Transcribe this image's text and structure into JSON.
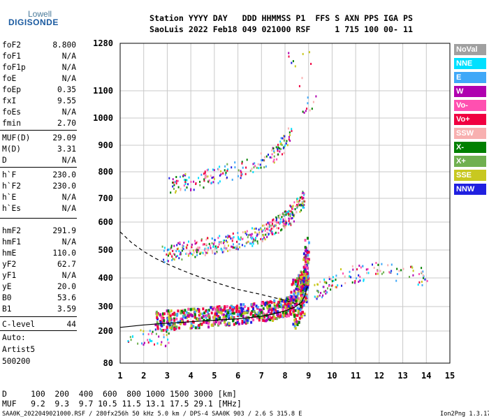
{
  "logo": {
    "top": "Lowell",
    "bottom": "DIGISONDE"
  },
  "header": {
    "line1": "Station YYYY DAY   DDD HHMMSS P1  FFS S AXN PPS IGA PS",
    "line2": "SaoLuis 2022 Feb18 049 021000 RSF     1 715 100 00- 11"
  },
  "params": [
    {
      "label": "foF2",
      "value": "8.800"
    },
    {
      "label": "foF1",
      "value": "N/A"
    },
    {
      "label": "foF1p",
      "value": "N/A"
    },
    {
      "label": "foE",
      "value": "N/A"
    },
    {
      "label": "foEp",
      "value": "0.35"
    },
    {
      "label": "fxI",
      "value": "9.55"
    },
    {
      "label": "foEs",
      "value": "N/A"
    },
    {
      "label": "fmin",
      "value": "2.70"
    },
    {
      "label": "MUF(D)",
      "value": "29.09"
    },
    {
      "label": "M(D)",
      "value": "3.31"
    },
    {
      "label": "D",
      "value": "N/A"
    },
    {
      "label": "h`F",
      "value": "230.0"
    },
    {
      "label": "h`F2",
      "value": "230.0"
    },
    {
      "label": "h`E",
      "value": "N/A"
    },
    {
      "label": "h`Es",
      "value": "N/A"
    },
    {
      "label": "hmF2",
      "value": "291.9"
    },
    {
      "label": "hmF1",
      "value": "N/A"
    },
    {
      "label": "hmE",
      "value": "110.0"
    },
    {
      "label": "yF2",
      "value": "62.7"
    },
    {
      "label": "yF1",
      "value": "N/A"
    },
    {
      "label": "yE",
      "value": "20.0"
    },
    {
      "label": "B0",
      "value": "53.6"
    },
    {
      "label": "B1",
      "value": "3.59"
    },
    {
      "label": "C-level",
      "value": "44"
    }
  ],
  "auto": {
    "line1": "Auto:",
    "line2": "Artist5",
    "line3": "500200"
  },
  "legend": [
    {
      "label": "NoVal",
      "color": "#a0a0a0"
    },
    {
      "label": "NNE",
      "color": "#00e0ff"
    },
    {
      "label": "E",
      "color": "#40a8f8"
    },
    {
      "label": "W",
      "color": "#b000b0"
    },
    {
      "label": "Vo-",
      "color": "#ff50b0"
    },
    {
      "label": "Vo+",
      "color": "#f00040"
    },
    {
      "label": "SSW",
      "color": "#f8b0b0"
    },
    {
      "label": "X-",
      "color": "#008000"
    },
    {
      "label": "X+",
      "color": "#70b050"
    },
    {
      "label": "SSE",
      "color": "#c8c820"
    },
    {
      "label": "NNW",
      "color": "#2020e0"
    }
  ],
  "bottom": {
    "d_line": "D     100  200  400  600  800 1000 1500 3000 [km]",
    "muf_line": "MUF   9.2  9.3  9.7 10.5 11.5 13.1 17.5 29.1 [MHz]"
  },
  "footer": {
    "left": "SAA0K_2022049021000.RSF / 280fx256h 50 kHz 5.0 km / DPS-4 SAA0K 903 / 2.6 S 315.8 E",
    "right": "Ion2Png 1.3.17"
  },
  "chart_data": {
    "type": "scatter",
    "xlim": [
      1,
      15
    ],
    "x_ticks": [
      1,
      2,
      3,
      4,
      5,
      6,
      7,
      8,
      9,
      10,
      11,
      12,
      13,
      14,
      15
    ],
    "y_ticks": [
      80,
      200,
      300,
      400,
      500,
      600,
      700,
      800,
      900,
      1000,
      1100,
      1280
    ],
    "y_ticks_scale": "virtual height in km, irregular scale",
    "grid": true,
    "traces": [
      {
        "name": "F2 O-trace",
        "points": [
          [
            2.5,
            245
          ],
          [
            3.5,
            252
          ],
          [
            4.5,
            260
          ],
          [
            5.5,
            268
          ],
          [
            6.5,
            278
          ],
          [
            7.5,
            290
          ],
          [
            8.2,
            305
          ],
          [
            8.6,
            330
          ],
          [
            8.8,
            380
          ],
          [
            8.9,
            470
          ]
        ]
      },
      {
        "name": "F2 second hop",
        "points": [
          [
            2.8,
            490
          ],
          [
            4,
            505
          ],
          [
            5,
            520
          ],
          [
            6,
            535
          ],
          [
            7,
            560
          ],
          [
            7.8,
            600
          ],
          [
            8.3,
            640
          ],
          [
            8.8,
            710
          ]
        ]
      },
      {
        "name": "F2 third hop",
        "points": [
          [
            3.1,
            755
          ],
          [
            4,
            765
          ],
          [
            5,
            790
          ],
          [
            6,
            810
          ],
          [
            7,
            840
          ],
          [
            7.7,
            885
          ],
          [
            8.2,
            935
          ]
        ]
      },
      {
        "name": "spread F",
        "points": [
          [
            9.2,
            350
          ],
          [
            9.8,
            380
          ],
          [
            10.5,
            410
          ],
          [
            11.3,
            420
          ],
          [
            12,
            430
          ],
          [
            13,
            420
          ],
          [
            14,
            405
          ]
        ]
      },
      {
        "name": "E sporadic",
        "points": [
          [
            1.3,
            180
          ],
          [
            2,
            180
          ],
          [
            2.6,
            180
          ],
          [
            3.1,
            178
          ]
        ]
      },
      {
        "name": "high echoes",
        "points": [
          [
            8.7,
            1050
          ],
          [
            9.3,
            1070
          ],
          [
            8,
            1220
          ],
          [
            9.3,
            1230
          ]
        ]
      }
    ],
    "curves": [
      {
        "name": "profile (solid)",
        "points": [
          [
            1,
            215
          ],
          [
            2,
            225
          ],
          [
            3,
            232
          ],
          [
            4,
            238
          ],
          [
            5,
            244
          ],
          [
            6,
            250
          ],
          [
            7,
            260
          ],
          [
            7.5,
            270
          ],
          [
            8,
            282
          ],
          [
            8.4,
            297
          ],
          [
            8.7,
            315
          ],
          [
            8.85,
            340
          ],
          [
            8.95,
            370
          ]
        ]
      },
      {
        "name": "MUF curve (dashed)",
        "points": [
          [
            1,
            565
          ],
          [
            1.5,
            525
          ],
          [
            2,
            495
          ],
          [
            2.5,
            470
          ],
          [
            3,
            450
          ],
          [
            3.5,
            432
          ],
          [
            4,
            415
          ],
          [
            5,
            385
          ],
          [
            6,
            360
          ],
          [
            7,
            342
          ],
          [
            7.5,
            332
          ],
          [
            8,
            322
          ],
          [
            8.4,
            312
          ],
          [
            8.8,
            302
          ]
        ]
      }
    ]
  }
}
